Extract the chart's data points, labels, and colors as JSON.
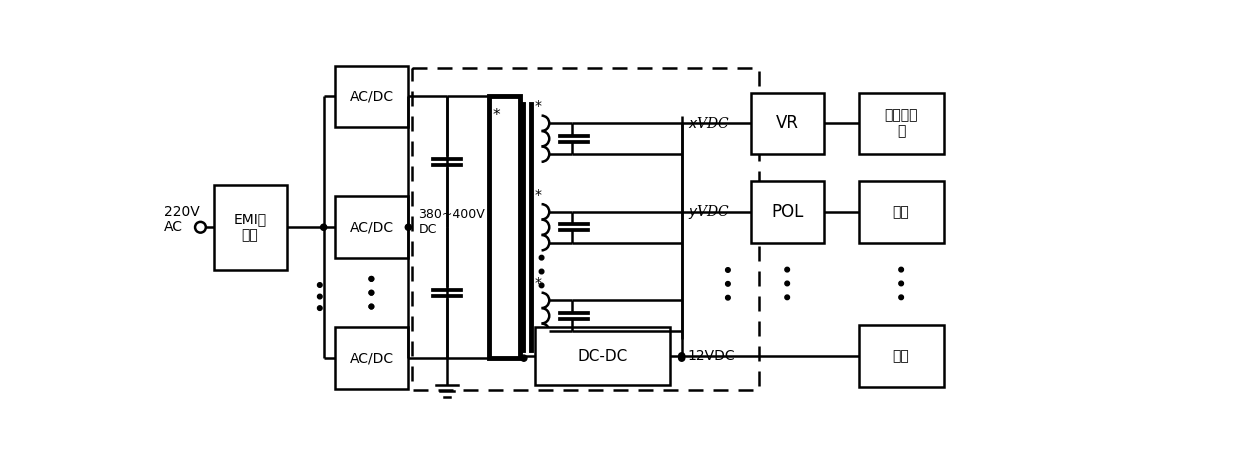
{
  "figsize": [
    12.4,
    4.5
  ],
  "dpi": 100,
  "bg_color": "#ffffff",
  "input_text1": "220V",
  "input_text2": "AC",
  "emi_label": "EMI滤\n波器",
  "acdc_label": "AC/DC",
  "bus_label1": "380~400V",
  "bus_label2": "DC",
  "dcdc_label": "DC-DC",
  "xvdc_label": "xVDC",
  "yvdc_label": "yVDC",
  "zvdc_label": "12VDC",
  "vr_label": "VR",
  "pol_label": "POL",
  "cpu_label": "处理器内\n存",
  "chip_label": "芯片",
  "disk_label": "硬盘",
  "lw_thin": 1.2,
  "lw_thick": 1.8,
  "lw_core": 3.5
}
